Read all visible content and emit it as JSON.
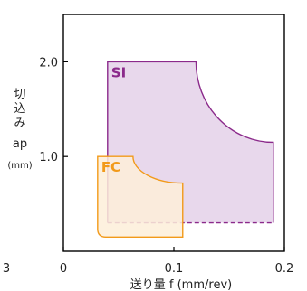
{
  "chart_data": {
    "type": "area",
    "xlabel": "送り量 f (mm/rev)",
    "ylabel_lines": [
      "切",
      "込",
      "み",
      "ap",
      "(mm)"
    ],
    "xlim": [
      0,
      0.2
    ],
    "ylim": [
      0,
      2.5
    ],
    "x_ticks": [
      {
        "value": 0,
        "label": "0"
      },
      {
        "value": 0.1,
        "label": "0.1"
      },
      {
        "value": 0.2,
        "label": "0.2"
      }
    ],
    "y_ticks": [
      {
        "value": 1.0,
        "label": "1.0"
      },
      {
        "value": 2.0,
        "label": "2.0"
      }
    ],
    "left_edge_label": "3",
    "grid": false,
    "series": [
      {
        "name": "SI",
        "color": "#8b2a8b",
        "fill": "#e8d8ec",
        "region": {
          "f_min": 0.04,
          "f_corner_start": 0.12,
          "f_max": 0.19,
          "ap_min": 0.3,
          "ap_max": 2.0,
          "ap_at_f_max": 1.15
        }
      },
      {
        "name": "FC",
        "color": "#f29a1a",
        "fill": "#fdeed9",
        "region": {
          "f_min": 0.031,
          "f_corner_start": 0.063,
          "f_max": 0.108,
          "ap_min": 0.15,
          "ap_max": 1.0,
          "ap_at_f_max": 0.72
        }
      }
    ]
  }
}
